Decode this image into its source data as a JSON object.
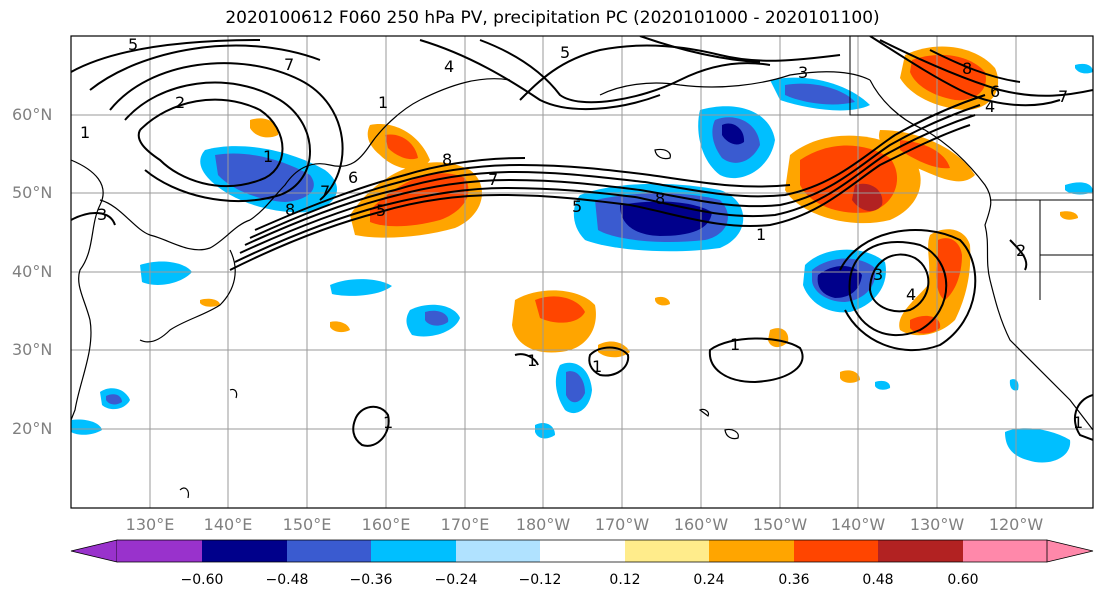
{
  "title": "2020100612 F060 250 hPa PV, precipitation PC (2020101000 - 2020101100)",
  "lat_labels": [
    "60°N",
    "50°N",
    "40°N",
    "30°N",
    "20°N"
  ],
  "lon_labels": [
    "130°E",
    "140°E",
    "150°E",
    "160°E",
    "170°E",
    "180°W",
    "170°W",
    "160°W",
    "150°W",
    "140°W",
    "130°W",
    "120°W"
  ],
  "colorbar": {
    "ticks": [
      "−0.60",
      "−0.48",
      "−0.36",
      "−0.24",
      "−0.12",
      "0.12",
      "0.24",
      "0.36",
      "0.48",
      "0.60"
    ],
    "colors": [
      "#9932cc",
      "#00008b",
      "#3a5bd0",
      "#00bfff",
      "#b0e2ff",
      "#ffffff",
      "#ffec8b",
      "#ffa500",
      "#ff4500",
      "#b22222",
      "#ff88aa"
    ]
  },
  "contour_labels": [
    "5",
    "7",
    "4",
    "2",
    "1",
    "5",
    "3",
    "8",
    "6",
    "4",
    "7",
    "1",
    "8",
    "7",
    "6",
    "8",
    "5",
    "7",
    "8",
    "5",
    "3",
    "1",
    "3",
    "4",
    "2",
    "1",
    "1",
    "1",
    "1",
    "1",
    "1"
  ]
}
